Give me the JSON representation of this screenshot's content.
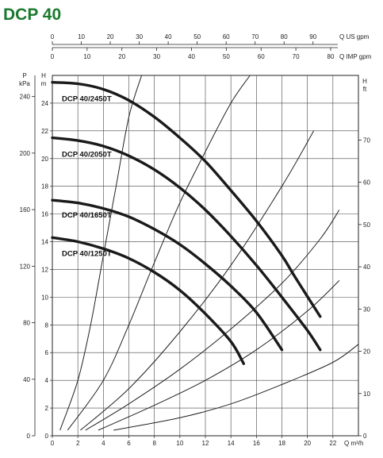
{
  "chart_data": {
    "type": "line",
    "title": "DCP 40",
    "x_axis": {
      "label": "Q m³/h",
      "ticks": [
        0,
        2,
        4,
        6,
        8,
        10,
        12,
        14,
        16,
        18,
        20,
        22
      ],
      "range": [
        0,
        24
      ]
    },
    "top_axes": [
      {
        "label": "Q US gpm",
        "ticks": [
          0,
          10,
          20,
          30,
          40,
          50,
          60,
          70,
          80,
          90
        ]
      },
      {
        "label": "Q IMP gpm",
        "ticks": [
          0,
          10,
          20,
          30,
          40,
          50,
          60,
          70,
          80
        ]
      }
    ],
    "y_axis_left_m": {
      "label": "H m",
      "ticks": [
        0,
        2,
        4,
        6,
        8,
        10,
        12,
        14,
        16,
        18,
        20,
        22,
        24
      ],
      "range": [
        0,
        26
      ]
    },
    "y_axis_left_kpa": {
      "label_top": "P",
      "label_unit": "kPa",
      "ticks": [
        0,
        40,
        80,
        120,
        160,
        200,
        240
      ]
    },
    "y_axis_right_ft": {
      "label_top": "H",
      "label_unit": "ft",
      "ticks": [
        0,
        10,
        20,
        30,
        40,
        50,
        60,
        70
      ]
    },
    "grid": true,
    "series": [
      {
        "name": "DCP 40/2450T",
        "x": [
          0,
          2,
          4,
          6,
          8,
          10,
          12,
          14,
          16,
          18,
          19,
          21
        ],
        "y": [
          25.5,
          25.4,
          25.0,
          24.2,
          23.0,
          21.5,
          19.8,
          17.7,
          15.5,
          13.0,
          11.5,
          8.6
        ]
      },
      {
        "name": "DCP 40/2050T",
        "x": [
          0,
          2,
          4,
          6,
          8,
          10,
          12,
          14,
          16,
          18,
          20,
          21
        ],
        "y": [
          21.5,
          21.3,
          20.9,
          20.2,
          19.2,
          17.9,
          16.3,
          14.4,
          12.3,
          10.0,
          7.6,
          6.2
        ]
      },
      {
        "name": "DCP 40/1650T",
        "x": [
          0,
          2,
          4,
          6,
          8,
          10,
          12,
          14,
          16,
          18
        ],
        "y": [
          17.0,
          16.8,
          16.4,
          15.8,
          14.9,
          13.8,
          12.4,
          10.8,
          8.9,
          6.2
        ]
      },
      {
        "name": "DCP 40/1250T",
        "x": [
          0,
          2,
          4,
          6,
          8,
          10,
          12,
          14,
          15
        ],
        "y": [
          14.3,
          14.0,
          13.5,
          12.8,
          11.8,
          10.5,
          8.8,
          6.8,
          5.2
        ]
      }
    ],
    "system_curves": [
      {
        "x": [
          0.6,
          2,
          3,
          4,
          5,
          6,
          7
        ],
        "y": [
          0.4,
          4,
          8,
          13,
          18,
          23,
          26
        ]
      },
      {
        "x": [
          1.2,
          4,
          6,
          8,
          10,
          12,
          14,
          15.5
        ],
        "y": [
          0.4,
          4,
          8,
          12.5,
          16.8,
          20.5,
          24,
          26
        ]
      },
      {
        "x": [
          2.2,
          6,
          10,
          14,
          18,
          20.5
        ],
        "y": [
          0.4,
          3.4,
          7.5,
          12.3,
          18,
          22
        ]
      },
      {
        "x": [
          2.6,
          6,
          10,
          14,
          18,
          21,
          22.5
        ],
        "y": [
          0.4,
          2.3,
          4.8,
          7.7,
          11,
          14.2,
          16.3
        ]
      },
      {
        "x": [
          3.6,
          8,
          12,
          16,
          20,
          22.5
        ],
        "y": [
          0.4,
          2.2,
          4.0,
          6.2,
          9.0,
          11.2
        ]
      },
      {
        "x": [
          4.8,
          10,
          14,
          18,
          22,
          24
        ],
        "y": [
          0.4,
          1.3,
          2.3,
          3.7,
          5.3,
          6.6
        ]
      }
    ]
  }
}
